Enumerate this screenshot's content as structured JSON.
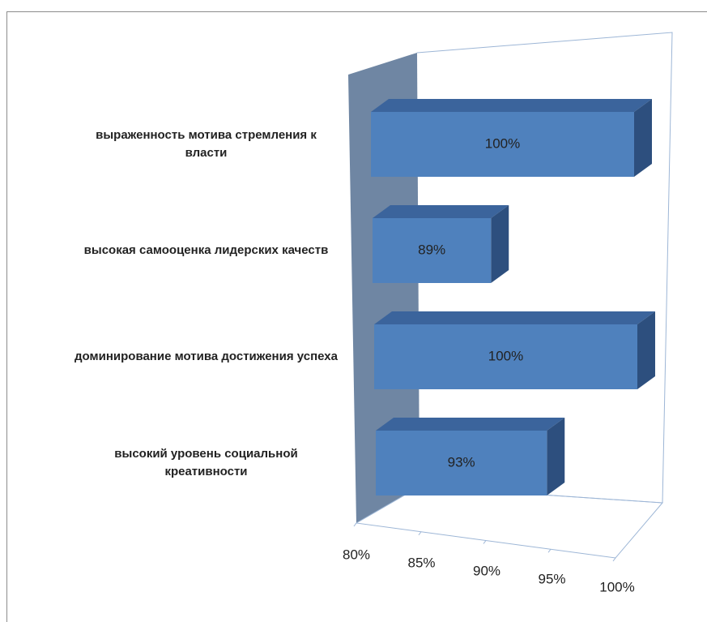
{
  "chart_data": {
    "type": "bar3d",
    "orientation": "horizontal",
    "categories": [
      "выраженность мотива стремления к власти",
      "высокая самооценка лидерских качеств",
      "доминирование мотива достижения успеха",
      "высокий уровень социальной креативности"
    ],
    "values": [
      100,
      89,
      100,
      93
    ],
    "value_labels": [
      "100%",
      "89%",
      "100%",
      "93%"
    ],
    "color": "#4f81bd",
    "xlim": [
      80,
      100
    ],
    "xticks": [
      {
        "value": 80,
        "label": "80%"
      },
      {
        "value": 85,
        "label": "85%"
      },
      {
        "value": 90,
        "label": "90%"
      },
      {
        "value": 95,
        "label": "95%"
      },
      {
        "value": 100,
        "label": "100%"
      }
    ]
  }
}
